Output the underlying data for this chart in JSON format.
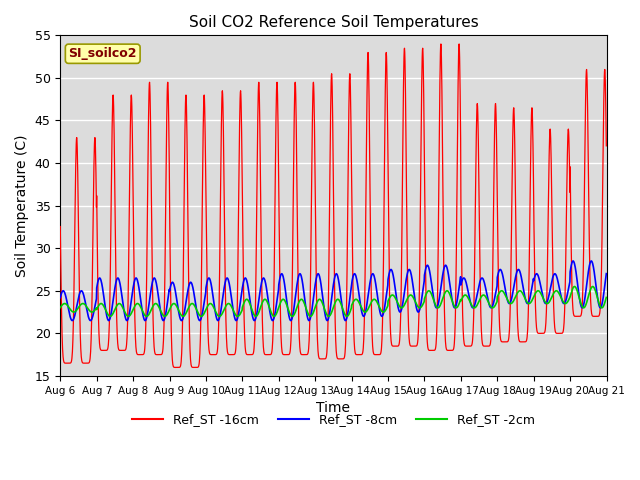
{
  "title": "Soil CO2 Reference Soil Temperatures",
  "xlabel": "Time",
  "ylabel": "Soil Temperature (C)",
  "ylim": [
    15,
    55
  ],
  "x_tick_labels": [
    "Aug 6",
    "Aug 7",
    "Aug 8",
    "Aug 9",
    "Aug 10",
    "Aug 11",
    "Aug 12",
    "Aug 13",
    "Aug 14",
    "Aug 15",
    "Aug 16",
    "Aug 17",
    "Aug 18",
    "Aug 19",
    "Aug 20",
    "Aug 21"
  ],
  "yticks": [
    15,
    20,
    25,
    30,
    35,
    40,
    45,
    50,
    55
  ],
  "colors": {
    "red": "#FF0000",
    "blue": "#0000FF",
    "green": "#00CC00",
    "background": "#DCDCDC",
    "label_bg": "#FFFFAA",
    "label_text": "#800000"
  },
  "legend_labels": [
    "Ref_ST -16cm",
    "Ref_ST -8cm",
    "Ref_ST -2cm"
  ],
  "station_label": "SI_soilco2",
  "red_peaks": [
    43.0,
    48.0,
    49.5,
    48.0,
    48.5,
    49.5,
    49.5,
    50.5,
    53.0,
    53.5,
    54.0,
    47.0,
    46.5,
    44.0,
    51.0
  ],
  "red_mins": [
    16.5,
    18.0,
    17.5,
    16.0,
    17.5,
    17.5,
    17.5,
    17.0,
    17.5,
    18.5,
    18.0,
    18.5,
    19.0,
    20.0,
    22.0
  ],
  "red_peak_pos": [
    0.45,
    0.45,
    0.45,
    0.45,
    0.45,
    0.45,
    0.45,
    0.45,
    0.45,
    0.45,
    0.45,
    0.45,
    0.45,
    0.45,
    0.45
  ],
  "blue_peaks": [
    25.0,
    26.5,
    26.5,
    26.0,
    26.5,
    26.5,
    27.0,
    27.0,
    27.0,
    27.5,
    28.0,
    26.5,
    27.5,
    27.0,
    28.5
  ],
  "blue_mins": [
    21.5,
    21.5,
    21.5,
    21.5,
    21.5,
    21.5,
    21.5,
    21.5,
    22.0,
    22.5,
    23.0,
    23.0,
    23.5,
    23.5,
    23.0
  ],
  "green_peaks": [
    23.5,
    23.5,
    23.5,
    23.5,
    23.5,
    24.0,
    24.0,
    24.0,
    24.0,
    24.5,
    25.0,
    24.5,
    25.0,
    25.0,
    25.5
  ],
  "green_mins": [
    22.5,
    22.0,
    22.0,
    22.0,
    22.0,
    22.0,
    22.0,
    22.0,
    22.5,
    23.0,
    23.0,
    23.0,
    23.5,
    23.5,
    23.0
  ]
}
